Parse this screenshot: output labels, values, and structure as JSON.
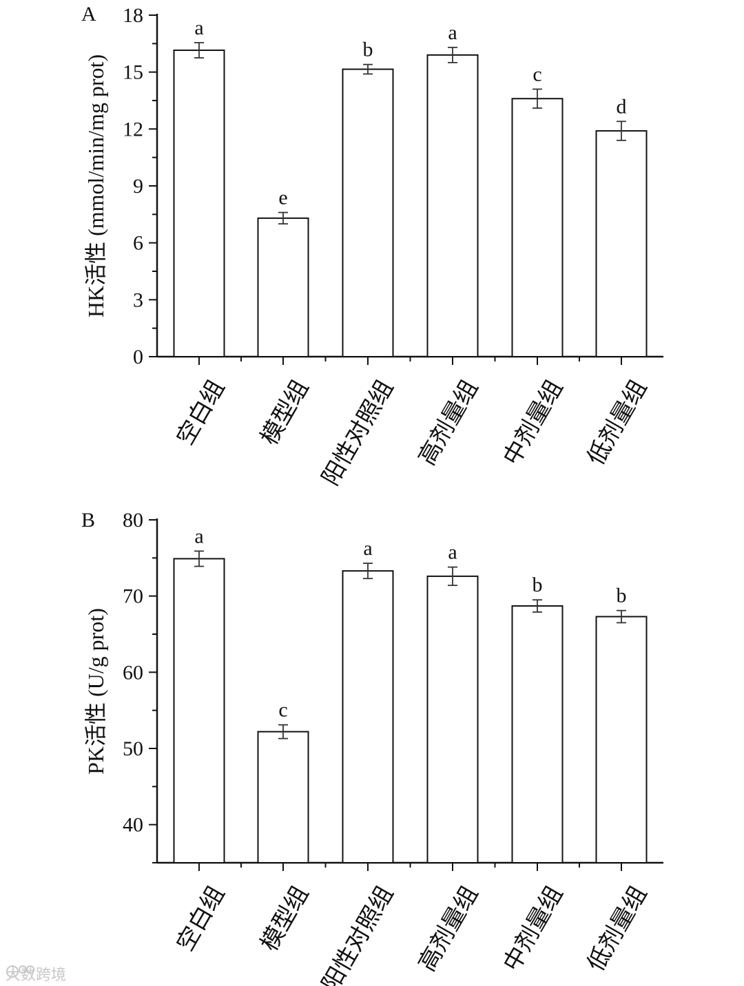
{
  "chart_data": [
    {
      "panel": "A",
      "type": "bar",
      "categories": [
        "空白组",
        "模型组",
        "阳性对照组",
        "高剂量组",
        "中剂量组",
        "低剂量组"
      ],
      "values": [
        16.15,
        7.3,
        15.15,
        15.9,
        13.6,
        11.9
      ],
      "errors": [
        0.4,
        0.3,
        0.25,
        0.4,
        0.5,
        0.5
      ],
      "significance": [
        "a",
        "e",
        "b",
        "a",
        "c",
        "d"
      ],
      "ylabel": "HK活性 (mmol/min/mg prot)",
      "ylim": [
        0,
        18
      ],
      "yticks": [
        0,
        3,
        6,
        9,
        12,
        15,
        18
      ],
      "ytick_labels": [
        "0",
        "3",
        "6",
        "9",
        "12",
        "15",
        "18"
      ],
      "grid": false
    },
    {
      "panel": "B",
      "type": "bar",
      "categories": [
        "空白组",
        "模型组",
        "阳性对照组",
        "高剂量组",
        "中剂量组",
        "低剂量组"
      ],
      "values": [
        74.9,
        52.2,
        73.3,
        72.6,
        68.7,
        67.3
      ],
      "errors": [
        1.0,
        0.9,
        1.0,
        1.2,
        0.8,
        0.8
      ],
      "significance": [
        "a",
        "c",
        "a",
        "a",
        "b",
        "b"
      ],
      "ylabel": "PK活性 (U/g prot)",
      "ylim": [
        35,
        80
      ],
      "yticks": [
        40,
        50,
        60,
        70,
        80
      ],
      "ytick_labels": [
        "40",
        "50",
        "60",
        "70",
        "80"
      ],
      "grid": false
    }
  ],
  "watermark": "大数跨境"
}
